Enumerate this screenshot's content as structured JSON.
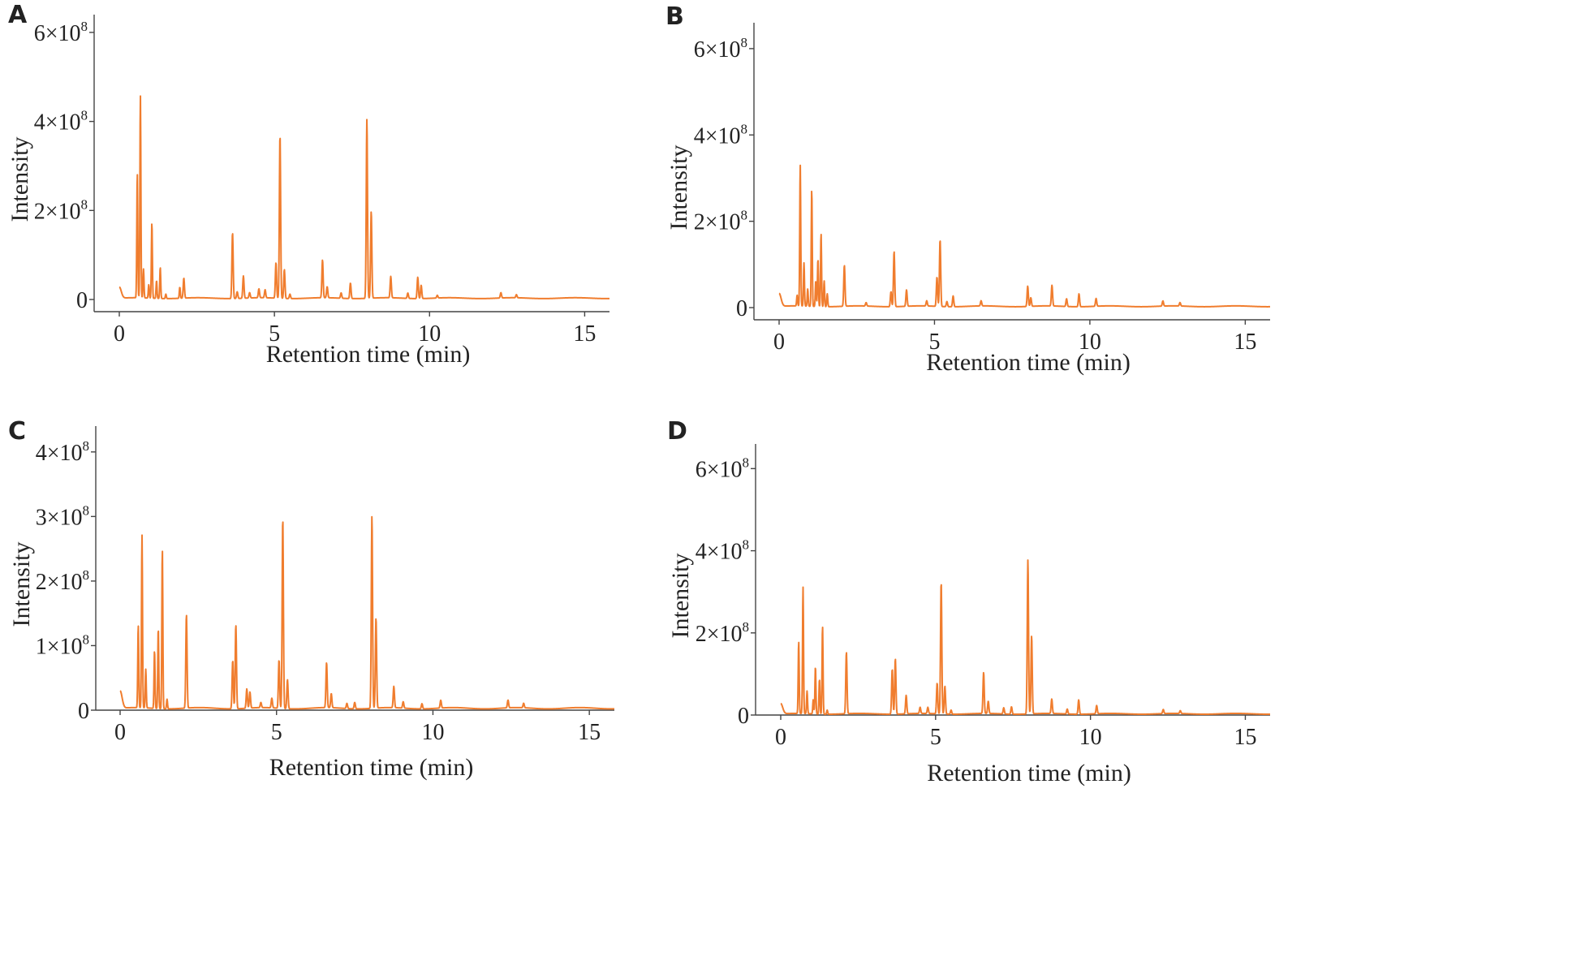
{
  "chart_data": [
    {
      "panel": "A",
      "type": "line",
      "xlabel": "Retention time (min)",
      "ylabel": "Intensity",
      "xlim": [
        0,
        15.8
      ],
      "ylim": [
        0,
        640000000.0
      ],
      "xticks": [
        0,
        5,
        10,
        15
      ],
      "yticks": [
        0,
        200000000.0,
        400000000.0,
        600000000.0
      ],
      "ytick_labels": [
        {
          "m": "0",
          "e": ""
        },
        {
          "m": "2×10",
          "e": "8"
        },
        {
          "m": "4×10",
          "e": "8"
        },
        {
          "m": "6×10",
          "e": "8"
        }
      ],
      "grid": false,
      "color": "#f07d2e",
      "peaks": [
        [
          0.58,
          280000000.0
        ],
        [
          0.68,
          455000000.0
        ],
        [
          0.78,
          65000000.0
        ],
        [
          0.95,
          30000000.0
        ],
        [
          1.05,
          170000000.0
        ],
        [
          1.2,
          40000000.0
        ],
        [
          1.32,
          70000000.0
        ],
        [
          1.5,
          10000000.0
        ],
        [
          1.95,
          25000000.0
        ],
        [
          2.08,
          45000000.0
        ],
        [
          3.65,
          148000000.0
        ],
        [
          3.8,
          15000000.0
        ],
        [
          4.0,
          50000000.0
        ],
        [
          4.2,
          12000000.0
        ],
        [
          4.5,
          20000000.0
        ],
        [
          4.7,
          18000000.0
        ],
        [
          5.05,
          80000000.0
        ],
        [
          5.18,
          368000000.0
        ],
        [
          5.32,
          65000000.0
        ],
        [
          5.5,
          10000000.0
        ],
        [
          6.55,
          85000000.0
        ],
        [
          6.7,
          25000000.0
        ],
        [
          7.15,
          12000000.0
        ],
        [
          7.45,
          35000000.0
        ],
        [
          7.98,
          402000000.0
        ],
        [
          8.12,
          195000000.0
        ],
        [
          8.75,
          48000000.0
        ],
        [
          9.3,
          12000000.0
        ],
        [
          9.62,
          48000000.0
        ],
        [
          9.73,
          30000000.0
        ],
        [
          10.25,
          6000000.0
        ],
        [
          12.3,
          12000000.0
        ],
        [
          12.8,
          7000000.0
        ]
      ],
      "baseline_start": 25000000.0
    },
    {
      "panel": "B",
      "type": "line",
      "xlabel": "Retention time (min)",
      "ylabel": "Intensity",
      "xlim": [
        0,
        15.8
      ],
      "ylim": [
        0,
        660000000.0
      ],
      "xticks": [
        0,
        5,
        10,
        15
      ],
      "yticks": [
        0,
        200000000.0,
        400000000.0,
        600000000.0
      ],
      "ytick_labels": [
        {
          "m": "0",
          "e": ""
        },
        {
          "m": "2×10",
          "e": "8"
        },
        {
          "m": "4×10",
          "e": "8"
        },
        {
          "m": "6×10",
          "e": "8"
        }
      ],
      "grid": false,
      "color": "#f07d2e",
      "peaks": [
        [
          0.58,
          25000000.0
        ],
        [
          0.68,
          327000000.0
        ],
        [
          0.8,
          100000000.0
        ],
        [
          0.92,
          40000000.0
        ],
        [
          1.05,
          272000000.0
        ],
        [
          1.18,
          60000000.0
        ],
        [
          1.25,
          110000000.0
        ],
        [
          1.35,
          170000000.0
        ],
        [
          1.45,
          60000000.0
        ],
        [
          1.55,
          30000000.0
        ],
        [
          2.1,
          95000000.0
        ],
        [
          2.8,
          8000000.0
        ],
        [
          3.6,
          35000000.0
        ],
        [
          3.7,
          128000000.0
        ],
        [
          4.1,
          38000000.0
        ],
        [
          4.75,
          12000000.0
        ],
        [
          5.08,
          68000000.0
        ],
        [
          5.18,
          155000000.0
        ],
        [
          5.4,
          12000000.0
        ],
        [
          5.6,
          25000000.0
        ],
        [
          6.5,
          12000000.0
        ],
        [
          8.0,
          47000000.0
        ],
        [
          8.1,
          20000000.0
        ],
        [
          8.78,
          48000000.0
        ],
        [
          9.25,
          18000000.0
        ],
        [
          9.65,
          30000000.0
        ],
        [
          10.2,
          18000000.0
        ],
        [
          12.35,
          12000000.0
        ],
        [
          12.9,
          8000000.0
        ]
      ],
      "baseline_start": 30000000.0
    },
    {
      "panel": "C",
      "type": "line",
      "xlabel": "Retention time (min)",
      "ylabel": "Intensity",
      "xlim": [
        0,
        15.8
      ],
      "ylim": [
        0,
        440000000.0
      ],
      "xticks": [
        0,
        5,
        10,
        15
      ],
      "yticks": [
        0,
        100000000.0,
        200000000.0,
        300000000.0,
        400000000.0
      ],
      "ytick_labels": [
        {
          "m": "0",
          "e": ""
        },
        {
          "m": "1×10",
          "e": "8"
        },
        {
          "m": "2×10",
          "e": "8"
        },
        {
          "m": "3×10",
          "e": "8"
        },
        {
          "m": "4×10",
          "e": "8"
        }
      ],
      "grid": false,
      "color": "#f07d2e",
      "peaks": [
        [
          0.58,
          128000000.0
        ],
        [
          0.7,
          268000000.0
        ],
        [
          0.82,
          60000000.0
        ],
        [
          1.1,
          90000000.0
        ],
        [
          1.22,
          125000000.0
        ],
        [
          1.35,
          248000000.0
        ],
        [
          1.5,
          15000000.0
        ],
        [
          2.12,
          145000000.0
        ],
        [
          3.6,
          75000000.0
        ],
        [
          3.7,
          130000000.0
        ],
        [
          4.05,
          30000000.0
        ],
        [
          4.15,
          25000000.0
        ],
        [
          4.5,
          8000000.0
        ],
        [
          4.85,
          15000000.0
        ],
        [
          5.08,
          75000000.0
        ],
        [
          5.2,
          295000000.0
        ],
        [
          5.35,
          45000000.0
        ],
        [
          6.6,
          70000000.0
        ],
        [
          6.75,
          22000000.0
        ],
        [
          7.25,
          8000000.0
        ],
        [
          7.5,
          10000000.0
        ],
        [
          8.05,
          298000000.0
        ],
        [
          8.18,
          140000000.0
        ],
        [
          8.75,
          33000000.0
        ],
        [
          9.05,
          10000000.0
        ],
        [
          9.65,
          8000000.0
        ],
        [
          10.25,
          12000000.0
        ],
        [
          12.4,
          12000000.0
        ],
        [
          12.9,
          7000000.0
        ]
      ],
      "baseline_start": 27000000.0
    },
    {
      "panel": "D",
      "type": "line",
      "xlabel": "Retention time (min)",
      "ylabel": "Intensity",
      "xlim": [
        0,
        15.8
      ],
      "ylim": [
        0,
        660000000.0
      ],
      "xticks": [
        0,
        5,
        10,
        15
      ],
      "yticks": [
        0,
        200000000.0,
        400000000.0,
        600000000.0
      ],
      "ytick_labels": [
        {
          "m": "0",
          "e": ""
        },
        {
          "m": "2×10",
          "e": "8"
        },
        {
          "m": "4×10",
          "e": "8"
        },
        {
          "m": "6×10",
          "e": "8"
        }
      ],
      "grid": false,
      "color": "#f07d2e",
      "peaks": [
        [
          0.58,
          175000000.0
        ],
        [
          0.72,
          308000000.0
        ],
        [
          0.85,
          55000000.0
        ],
        [
          1.05,
          35000000.0
        ],
        [
          1.12,
          115000000.0
        ],
        [
          1.25,
          85000000.0
        ],
        [
          1.35,
          215000000.0
        ],
        [
          1.5,
          10000000.0
        ],
        [
          2.12,
          150000000.0
        ],
        [
          3.6,
          110000000.0
        ],
        [
          3.7,
          135000000.0
        ],
        [
          4.05,
          45000000.0
        ],
        [
          4.5,
          15000000.0
        ],
        [
          4.75,
          15000000.0
        ],
        [
          5.05,
          75000000.0
        ],
        [
          5.18,
          322000000.0
        ],
        [
          5.3,
          68000000.0
        ],
        [
          5.5,
          10000000.0
        ],
        [
          6.55,
          100000000.0
        ],
        [
          6.7,
          30000000.0
        ],
        [
          7.2,
          15000000.0
        ],
        [
          7.45,
          18000000.0
        ],
        [
          7.98,
          375000000.0
        ],
        [
          8.1,
          190000000.0
        ],
        [
          8.75,
          35000000.0
        ],
        [
          9.25,
          12000000.0
        ],
        [
          9.62,
          35000000.0
        ],
        [
          10.2,
          20000000.0
        ],
        [
          12.35,
          10000000.0
        ],
        [
          12.9,
          7000000.0
        ]
      ],
      "baseline_start": 25000000.0
    }
  ]
}
